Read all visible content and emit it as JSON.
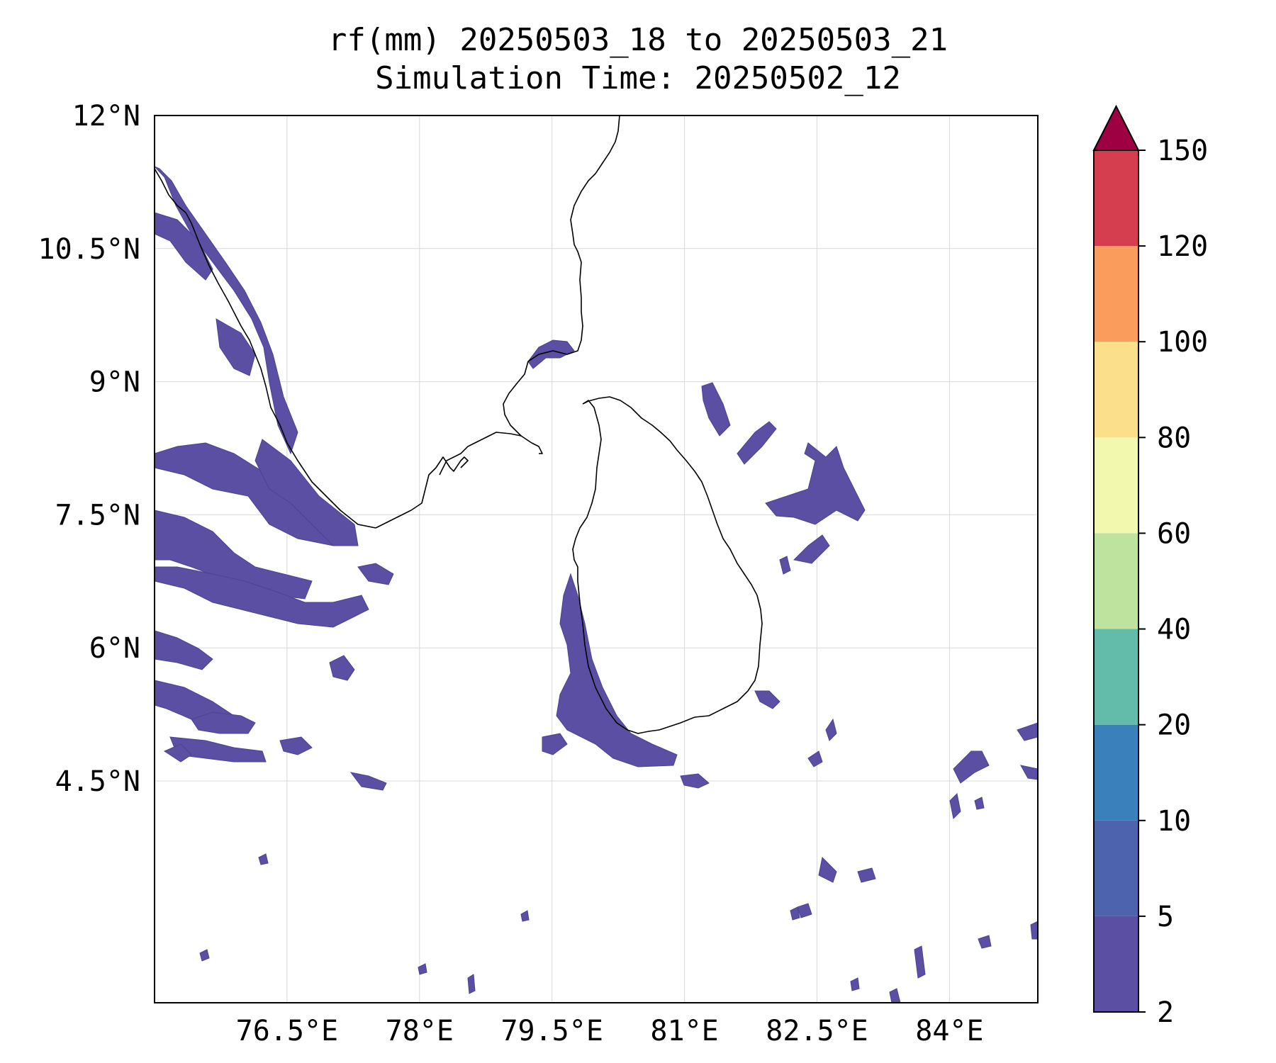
{
  "title": {
    "line1": "rf(mm) 20250503_18 to 20250503_21",
    "line2": "Simulation Time: 20250502_12"
  },
  "map": {
    "lon_range": [
      75.0,
      85.0
    ],
    "lat_range": [
      2.0,
      12.0
    ],
    "x_ticks": [
      {
        "value": 76.5,
        "label": "76.5°E"
      },
      {
        "value": 78.0,
        "label": "78°E"
      },
      {
        "value": 79.5,
        "label": "79.5°E"
      },
      {
        "value": 81.0,
        "label": "81°E"
      },
      {
        "value": 82.5,
        "label": "82.5°E"
      },
      {
        "value": 84.0,
        "label": "84°E"
      }
    ],
    "y_ticks": [
      {
        "value": 12.0,
        "label": "12°N"
      },
      {
        "value": 10.5,
        "label": "10.5°N"
      },
      {
        "value": 9.0,
        "label": "9°N"
      },
      {
        "value": 7.5,
        "label": "7.5°N"
      },
      {
        "value": 6.0,
        "label": "6°N"
      },
      {
        "value": 4.5,
        "label": "4.5°N"
      }
    ],
    "gridlines": true
  },
  "colorbar": {
    "levels": [
      {
        "label": "2",
        "color": "#5a4fa2"
      },
      {
        "label": "5",
        "color": "#4d63ad"
      },
      {
        "label": "10",
        "color": "#3a80ba"
      },
      {
        "label": "20",
        "color": "#62bca9"
      },
      {
        "label": "40",
        "color": "#bde39f"
      },
      {
        "label": "60",
        "color": "#f2f9ae"
      },
      {
        "label": "80",
        "color": "#fbdf8b"
      },
      {
        "label": "100",
        "color": "#f99c5c"
      },
      {
        "label": "120",
        "color": "#d53e4f"
      },
      {
        "label": "150",
        "color": "#9e0142"
      }
    ],
    "extend": "max"
  }
}
